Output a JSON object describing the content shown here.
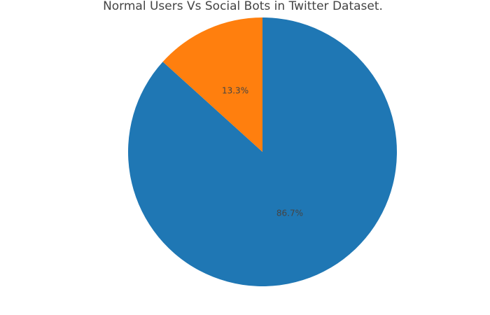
{
  "chart_data": {
    "type": "pie",
    "title": "Normal Users Vs Social Bots in Twitter Dataset.",
    "slices": [
      {
        "value": 86.7,
        "label": "86.7%",
        "color": "#1f77b4"
      },
      {
        "value": 13.3,
        "label": "13.3%",
        "color": "#ff7f0e"
      }
    ],
    "start_angle_deg": 0,
    "direction": "clockwise",
    "legend": "none"
  }
}
